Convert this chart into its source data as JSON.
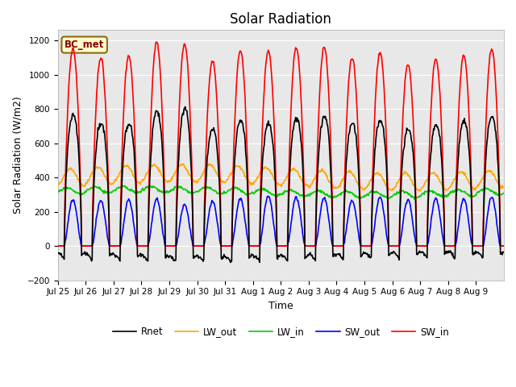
{
  "title": "Solar Radiation",
  "ylabel": "Solar Radiation (W/m2)",
  "xlabel": "Time",
  "ylim": [
    -200,
    1260
  ],
  "yticks": [
    -200,
    0,
    200,
    400,
    600,
    800,
    1000,
    1200
  ],
  "total_days": 16,
  "colors": {
    "SW_in": "#ff0000",
    "SW_out": "#0000ff",
    "LW_in": "#00cc00",
    "LW_out": "#ffa500",
    "Rnet": "#000000"
  },
  "linewidths": {
    "SW_in": 1.2,
    "SW_out": 1.2,
    "LW_in": 1.2,
    "LW_out": 1.2,
    "Rnet": 1.2
  },
  "annotation": "BC_met",
  "bg_color": "#ffffff",
  "plot_bg_color": "#e8e8e8",
  "grid_color": "#ffffff",
  "title_fontsize": 12,
  "tick_labels": [
    "Jul 25",
    "Jul 26",
    "Jul 27",
    "Jul 28",
    "Jul 29",
    "Jul 30",
    "Jul 31",
    "Aug 1",
    "Aug 2",
    "Aug 3",
    "Aug 4",
    "Aug 5",
    "Aug 6",
    "Aug 7",
    "Aug 8",
    "Aug 9"
  ]
}
